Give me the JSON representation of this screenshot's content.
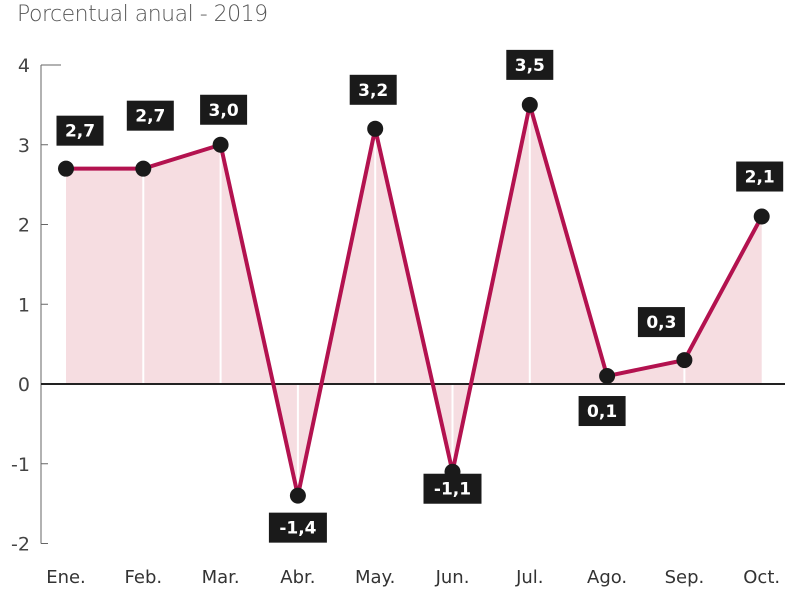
{
  "chart_data": {
    "type": "line",
    "title": "",
    "subtitle": "Porcentual anual - 2019",
    "xlabel": "",
    "ylabel": "",
    "categories": [
      "Ene.",
      "Feb.",
      "Mar.",
      "Abr.",
      "May.",
      "Jun.",
      "Jul.",
      "Ago.",
      "Sep.",
      "Oct."
    ],
    "values": [
      2.7,
      2.7,
      3.0,
      -1.4,
      3.2,
      -1.1,
      3.5,
      0.1,
      0.3,
      2.1
    ],
    "data_labels": [
      "2,7",
      "2,7",
      "3,0",
      "-1,4",
      "3,2",
      "-1,1",
      "3,5",
      "0,1",
      "0,3",
      "2,1"
    ],
    "ylim": [
      -2,
      4
    ],
    "yticks": [
      4,
      3,
      2,
      1,
      0,
      -1,
      -2
    ],
    "grid": false,
    "area_fill": true,
    "colors": {
      "line": "#b3124f",
      "fill": "#f6dde1",
      "marker": "#1a1a1a",
      "label_bg": "#1a1a1a"
    }
  }
}
